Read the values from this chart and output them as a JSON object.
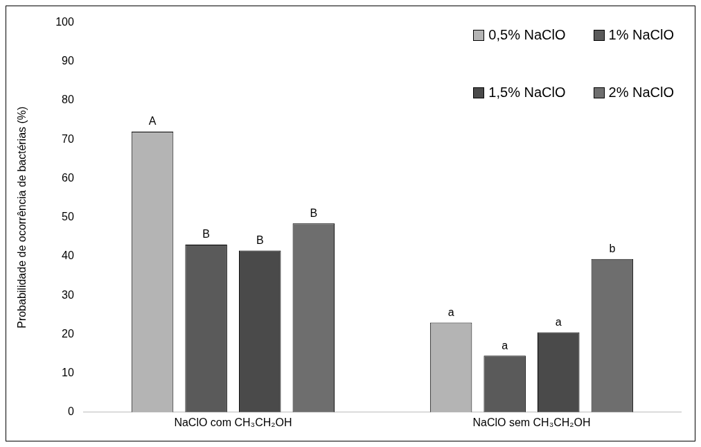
{
  "chart_data": {
    "type": "bar",
    "ylabel": "Probabilidade de ocorrência de bactérias (%)",
    "categories": [
      "NaClO com CH₃CH₂OH",
      "NaClO sem CH₃CH₂OH"
    ],
    "series": [
      {
        "name": "0,5% NaClO",
        "color": "#b4b4b4",
        "values": [
          72,
          23
        ]
      },
      {
        "name": "1% NaClO",
        "color": "#5a5a5a",
        "values": [
          43,
          14.5
        ]
      },
      {
        "name": "1,5% NaClO",
        "color": "#4a4a4a",
        "values": [
          41.5,
          20.5
        ]
      },
      {
        "name": "2% NaClO",
        "color": "#6e6e6e",
        "values": [
          48.5,
          39.3
        ]
      }
    ],
    "ylim": [
      0,
      100
    ],
    "yticks": [
      0,
      10,
      20,
      30,
      40,
      50,
      60,
      70,
      80,
      90,
      100
    ],
    "grid": false,
    "legend": "top right",
    "annotations": [
      "A",
      "B",
      "B",
      "B",
      "a",
      "a",
      "a",
      "b"
    ]
  }
}
